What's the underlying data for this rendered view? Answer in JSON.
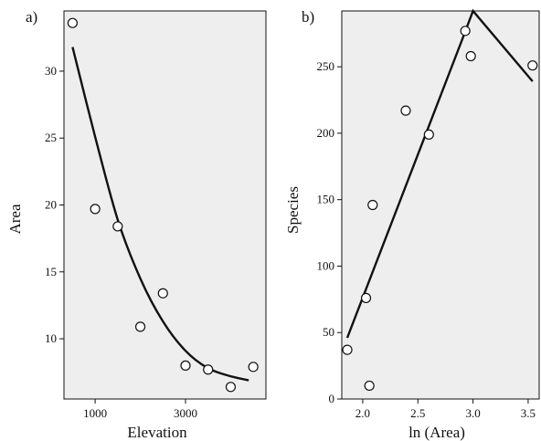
{
  "colors": {
    "panel_background": "#efeeee",
    "ink": "#111111",
    "marker_fill": "#ffffff"
  },
  "chart_data": [
    {
      "panel_label": "a)",
      "type": "scatter",
      "xlabel": "Elevation",
      "ylabel": "Area",
      "xlim": [
        310,
        4780
      ],
      "ylim": [
        5.5,
        34.5
      ],
      "xticks": [
        1000,
        3000
      ],
      "yticks": [
        10,
        15,
        20,
        25,
        30
      ],
      "grid": false,
      "points": [
        {
          "x": 500,
          "y": 33.6
        },
        {
          "x": 1000,
          "y": 19.7
        },
        {
          "x": 1500,
          "y": 18.4
        },
        {
          "x": 2000,
          "y": 10.9
        },
        {
          "x": 2500,
          "y": 13.4
        },
        {
          "x": 3000,
          "y": 8.0
        },
        {
          "x": 3500,
          "y": 7.7
        },
        {
          "x": 4000,
          "y": 6.4
        },
        {
          "x": 4500,
          "y": 7.9
        }
      ],
      "fit_line": [
        {
          "x": 500,
          "y": 31.8
        },
        {
          "x": 1000,
          "y": 25.1
        },
        {
          "x": 1500,
          "y": 18.9
        },
        {
          "x": 2000,
          "y": 14.5
        },
        {
          "x": 2500,
          "y": 11.3
        },
        {
          "x": 3000,
          "y": 9.1
        },
        {
          "x": 3500,
          "y": 7.8
        },
        {
          "x": 4000,
          "y": 7.2
        },
        {
          "x": 4400,
          "y": 6.9
        }
      ]
    },
    {
      "panel_label": "b)",
      "type": "scatter",
      "xlabel": "ln (Area)",
      "ylabel": "Species",
      "xlim": [
        1.81,
        3.6
      ],
      "ylim": [
        0,
        292
      ],
      "xticks": [
        2.0,
        2.5,
        3.0,
        3.5
      ],
      "yticks": [
        0,
        50,
        100,
        150,
        200,
        250
      ],
      "grid": false,
      "points": [
        {
          "x": 1.86,
          "y": 37
        },
        {
          "x": 2.03,
          "y": 76
        },
        {
          "x": 2.06,
          "y": 10
        },
        {
          "x": 2.09,
          "y": 146
        },
        {
          "x": 2.39,
          "y": 217
        },
        {
          "x": 2.6,
          "y": 199
        },
        {
          "x": 2.93,
          "y": 277
        },
        {
          "x": 2.98,
          "y": 258
        },
        {
          "x": 3.54,
          "y": 251
        }
      ],
      "fit_line": [
        {
          "x": 1.86,
          "y": 46
        },
        {
          "x": 2.9,
          "y": 270
        },
        {
          "x": 3.0,
          "y": 292
        },
        {
          "x": 3.54,
          "y": 239
        }
      ]
    }
  ]
}
